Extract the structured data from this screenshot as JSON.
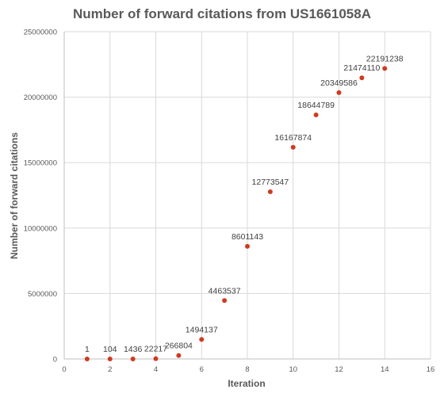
{
  "chart_data": {
    "type": "scatter",
    "title": "Number of forward citations from US1661058A",
    "xlabel": "Iteration",
    "ylabel": "Number of forward citations",
    "xlim": [
      0,
      16
    ],
    "ylim": [
      0,
      25000000
    ],
    "x_ticks": [
      0,
      2,
      4,
      6,
      8,
      10,
      12,
      14,
      16
    ],
    "y_ticks": [
      0,
      5000000,
      10000000,
      15000000,
      20000000,
      25000000
    ],
    "grid": "vertical and horizontal major gridlines",
    "legend": "none",
    "marker_color": "#d03a1f",
    "series": [
      {
        "x": [
          1,
          2,
          3,
          4,
          5,
          6,
          7,
          8,
          9,
          10,
          11,
          12,
          13,
          14
        ],
        "y": [
          1,
          104,
          1436,
          22217,
          266804,
          1494137,
          4463537,
          8601143,
          12773547,
          16167874,
          18644789,
          20349586,
          21474110,
          22191238
        ],
        "data_labels": [
          "1",
          "104",
          "1436",
          "22217",
          "266804",
          "1494137",
          "4463537",
          "8601143",
          "12773547",
          "16167874",
          "18644789",
          "20349586",
          "21474110",
          "22191238"
        ]
      }
    ]
  }
}
